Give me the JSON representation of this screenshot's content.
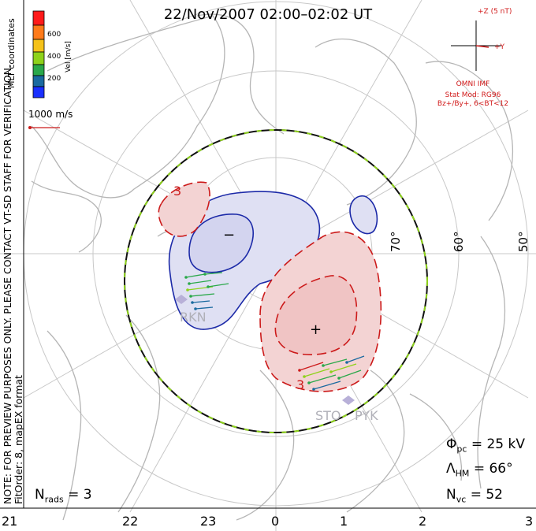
{
  "title": "22/Nov/2007 02:00–02:02 UT",
  "colorbar": {
    "label": "Vel [m/s]",
    "ticks": [
      "600",
      "400",
      "200"
    ],
    "colors": [
      "#ff1a1a",
      "#ff7b1a",
      "#f5c21a",
      "#8ed21a",
      "#2aa84a",
      "#1a6aa0",
      "#1a30ff"
    ]
  },
  "coords_label": "MLT coordinates",
  "scale_vector_label": "1000 m/s",
  "preview_note": "NOTE: FOR PREVIEW PURPOSES ONLY. PLEASE CONTACT VT-SD STAFF FOR VERIFICATION.",
  "fit_note": "FitOrder: 8, mapEX format",
  "imf": {
    "z_label": "+Z (5 nT)",
    "y_label": "+Y",
    "source": "OMNI IMF",
    "stat_mod": "Stat Mod: RG96",
    "conditions": "Bz+/By+, 6<BT<12"
  },
  "stats": {
    "phi_symbol": "Φ",
    "phi_sub": "pc",
    "phi_value": "= 25 kV",
    "lambda_symbol": "Λ",
    "lambda_sub": "HM",
    "lambda_value": "= 66°",
    "nvc_symbol": "N",
    "nvc_sub": "vc",
    "nvc_value": "= 52",
    "nrads_symbol": "N",
    "nrads_sub": "rads",
    "nrads_value": "= 3"
  },
  "mlt_ticks": [
    "21",
    "22",
    "23",
    "0",
    "1",
    "2",
    "3"
  ],
  "lat_labels": [
    "70°",
    "60°",
    "50°"
  ],
  "stations": [
    "RKN",
    "STO",
    "PYK"
  ],
  "cell_markers": {
    "negative": "−",
    "positive": "+"
  },
  "contour_label": "3",
  "colors": {
    "negative_fill": "#dfe0f3",
    "negative_line": "#1c2aa8",
    "positive_fill": "#f3d3d3",
    "positive_line": "#cc1a1a",
    "grid": "#c8c8c8",
    "coast": "#b5b5b5",
    "boundary_green": "#8ed21a"
  }
}
